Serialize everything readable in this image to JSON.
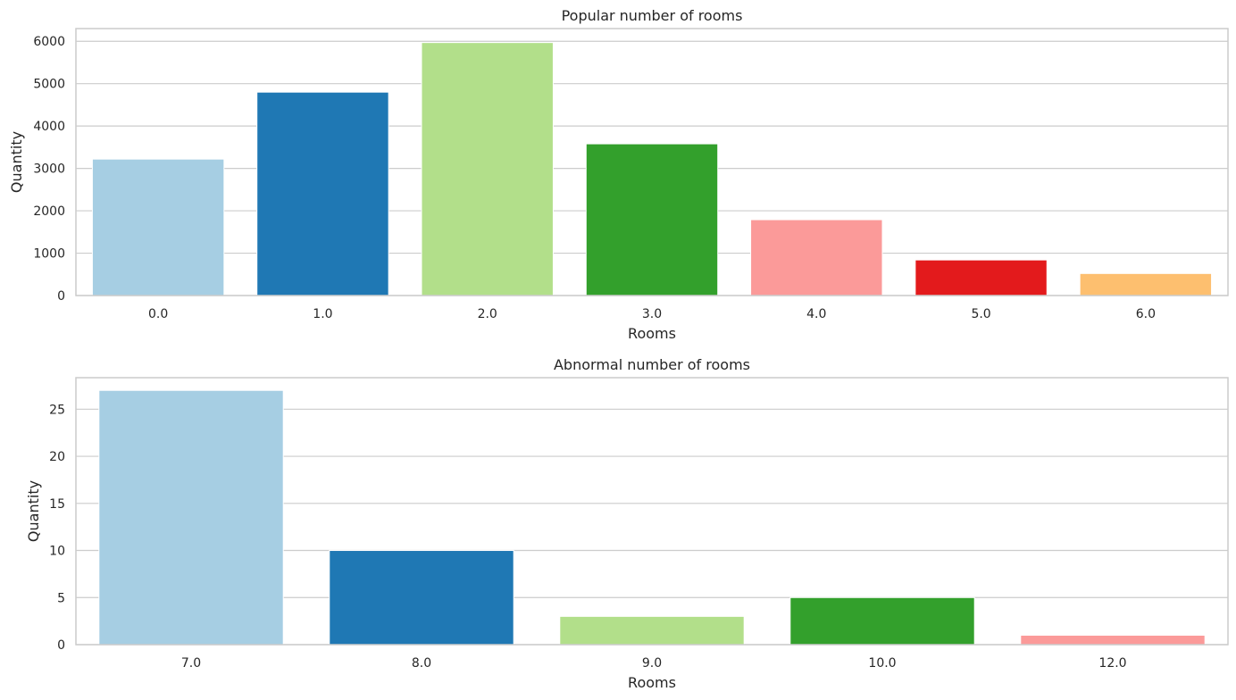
{
  "chart_data": [
    {
      "type": "bar",
      "title": "Popular number of rooms",
      "xlabel": "Rooms",
      "ylabel": "Quantity",
      "categories": [
        "0.0",
        "1.0",
        "2.0",
        "3.0",
        "4.0",
        "5.0",
        "6.0"
      ],
      "values": [
        3220,
        4800,
        5970,
        3580,
        1790,
        840,
        520
      ],
      "colors": [
        "#a6cee3",
        "#1f78b4",
        "#b2df8a",
        "#33a02c",
        "#fb9a99",
        "#e31a1c",
        "#fdbf6f"
      ],
      "ylim": [
        0,
        6300
      ],
      "yticks": [
        0,
        1000,
        2000,
        3000,
        4000,
        5000,
        6000
      ],
      "grid": "horizontal",
      "legend": "none"
    },
    {
      "type": "bar",
      "title": "Abnormal number of rooms",
      "xlabel": "Rooms",
      "ylabel": "Quantity",
      "categories": [
        "7.0",
        "8.0",
        "9.0",
        "10.0",
        "12.0"
      ],
      "values": [
        27,
        10,
        3,
        5,
        1
      ],
      "colors": [
        "#a6cee3",
        "#1f78b4",
        "#b2df8a",
        "#33a02c",
        "#fb9a99"
      ],
      "ylim": [
        0,
        28.35
      ],
      "yticks": [
        0,
        5,
        10,
        15,
        20,
        25
      ],
      "grid": "horizontal",
      "legend": "none"
    }
  ]
}
